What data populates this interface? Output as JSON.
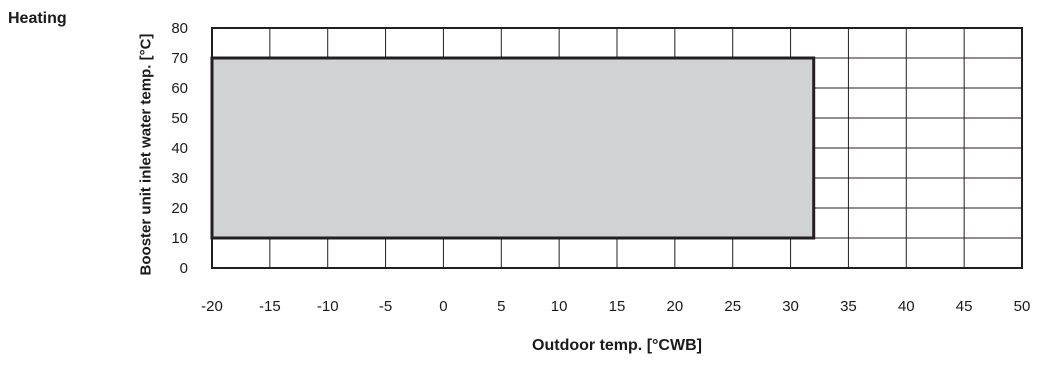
{
  "chart_data": {
    "type": "area",
    "title": "Heating",
    "xlabel": "Outdoor temp. [°CWB]",
    "ylabel": "Booster unit inlet water temp. [°C]",
    "xlim": [
      -20,
      50
    ],
    "ylim": [
      0,
      80
    ],
    "x_ticks": [
      -20,
      -15,
      -10,
      -5,
      0,
      5,
      10,
      15,
      20,
      25,
      30,
      35,
      40,
      45,
      50
    ],
    "y_ticks": [
      0,
      10,
      20,
      30,
      40,
      50,
      60,
      70,
      80
    ],
    "grid": true,
    "regions": [
      {
        "x": [
          -20,
          32
        ],
        "y": [
          10,
          70
        ],
        "fill": "#d1d2d4",
        "edge": "#231f20"
      }
    ]
  },
  "colors": {
    "grid": "#231f20",
    "region_fill": "#d1d2d4",
    "region_edge": "#231f20"
  }
}
